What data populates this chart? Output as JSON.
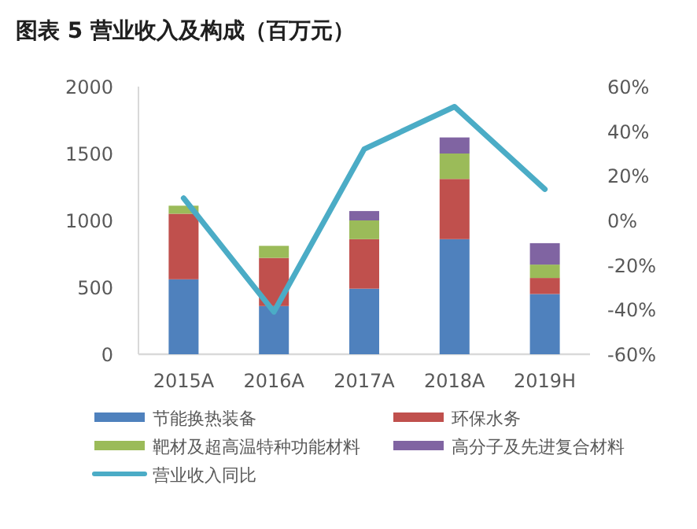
{
  "chart_data": {
    "type": "bar",
    "title": "图表 5   营业收入及构成（百万元）",
    "stacked": true,
    "legend": "bottom",
    "categories": [
      "2015A",
      "2016A",
      "2017A",
      "2018A",
      "2019H"
    ],
    "ylim": [
      0,
      2000
    ],
    "yticks": [
      0,
      500,
      1000,
      1500,
      2000
    ],
    "y2lim": [
      -60,
      60
    ],
    "y2ticks": [
      {
        "value": -60,
        "label": "-60%"
      },
      {
        "value": -40,
        "label": "-40%"
      },
      {
        "value": -20,
        "label": "-20%"
      },
      {
        "value": 0,
        "label": "0%"
      },
      {
        "value": 20,
        "label": "20%"
      },
      {
        "value": 40,
        "label": "40%"
      },
      {
        "value": 60,
        "label": "60%"
      }
    ],
    "series": [
      {
        "name": "节能换热装备",
        "color": "#4f81bd",
        "values": [
          560,
          360,
          490,
          860,
          450
        ]
      },
      {
        "name": "环保水务",
        "color": "#c0504d",
        "values": [
          490,
          360,
          370,
          450,
          120
        ]
      },
      {
        "name": "靶材及超高温特种功能材料",
        "color": "#9bbb59",
        "values": [
          60,
          90,
          140,
          190,
          100
        ]
      },
      {
        "name": "高分子及先进复合材料",
        "color": "#8064a2",
        "values": [
          0,
          0,
          70,
          120,
          160
        ]
      },
      {
        "name": "营业收入同比",
        "color": "#4bacc6",
        "type": "line",
        "axis": "y2",
        "values": [
          10,
          -41,
          32,
          51,
          14
        ]
      }
    ]
  }
}
